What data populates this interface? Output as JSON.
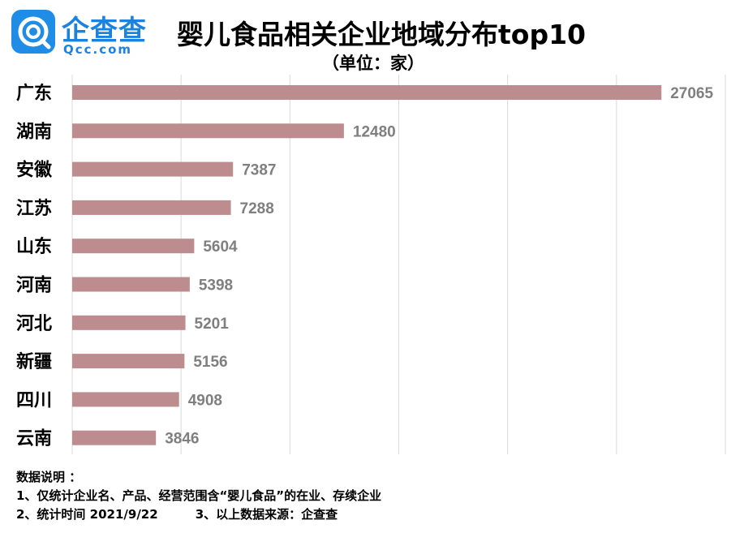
{
  "logo": {
    "cn_text": "企查查",
    "en_text": "Qcc.com",
    "brand_color": "#1f8ce5"
  },
  "header": {
    "title": "婴儿食品相关企业地域分布top10",
    "unit": "（单位：家）"
  },
  "chart_data": {
    "type": "bar",
    "orientation": "horizontal",
    "title": "婴儿食品相关企业地域分布top10",
    "subtitle": "（单位：家）",
    "categories": [
      "广东",
      "湖南",
      "安徽",
      "江苏",
      "山东",
      "河南",
      "河北",
      "新疆",
      "四川",
      "云南"
    ],
    "values": [
      27065,
      12480,
      7387,
      7288,
      5604,
      5398,
      5201,
      5156,
      4908,
      3846
    ],
    "xlim": [
      0,
      30000
    ],
    "grid": true,
    "bar_color": "#bd8c8e",
    "label_color": "#7f7f7f",
    "grid_color": "#d9d9d9",
    "legend": "none"
  },
  "notes": {
    "heading": "数据说明 ：",
    "line1": "1、仅统计企业名、产品、经营范围含“婴儿食品”的在业、存续企业",
    "line2a": "2、统计时间  2021/9/22",
    "line2b": "3、以上数据来源：企查查"
  }
}
